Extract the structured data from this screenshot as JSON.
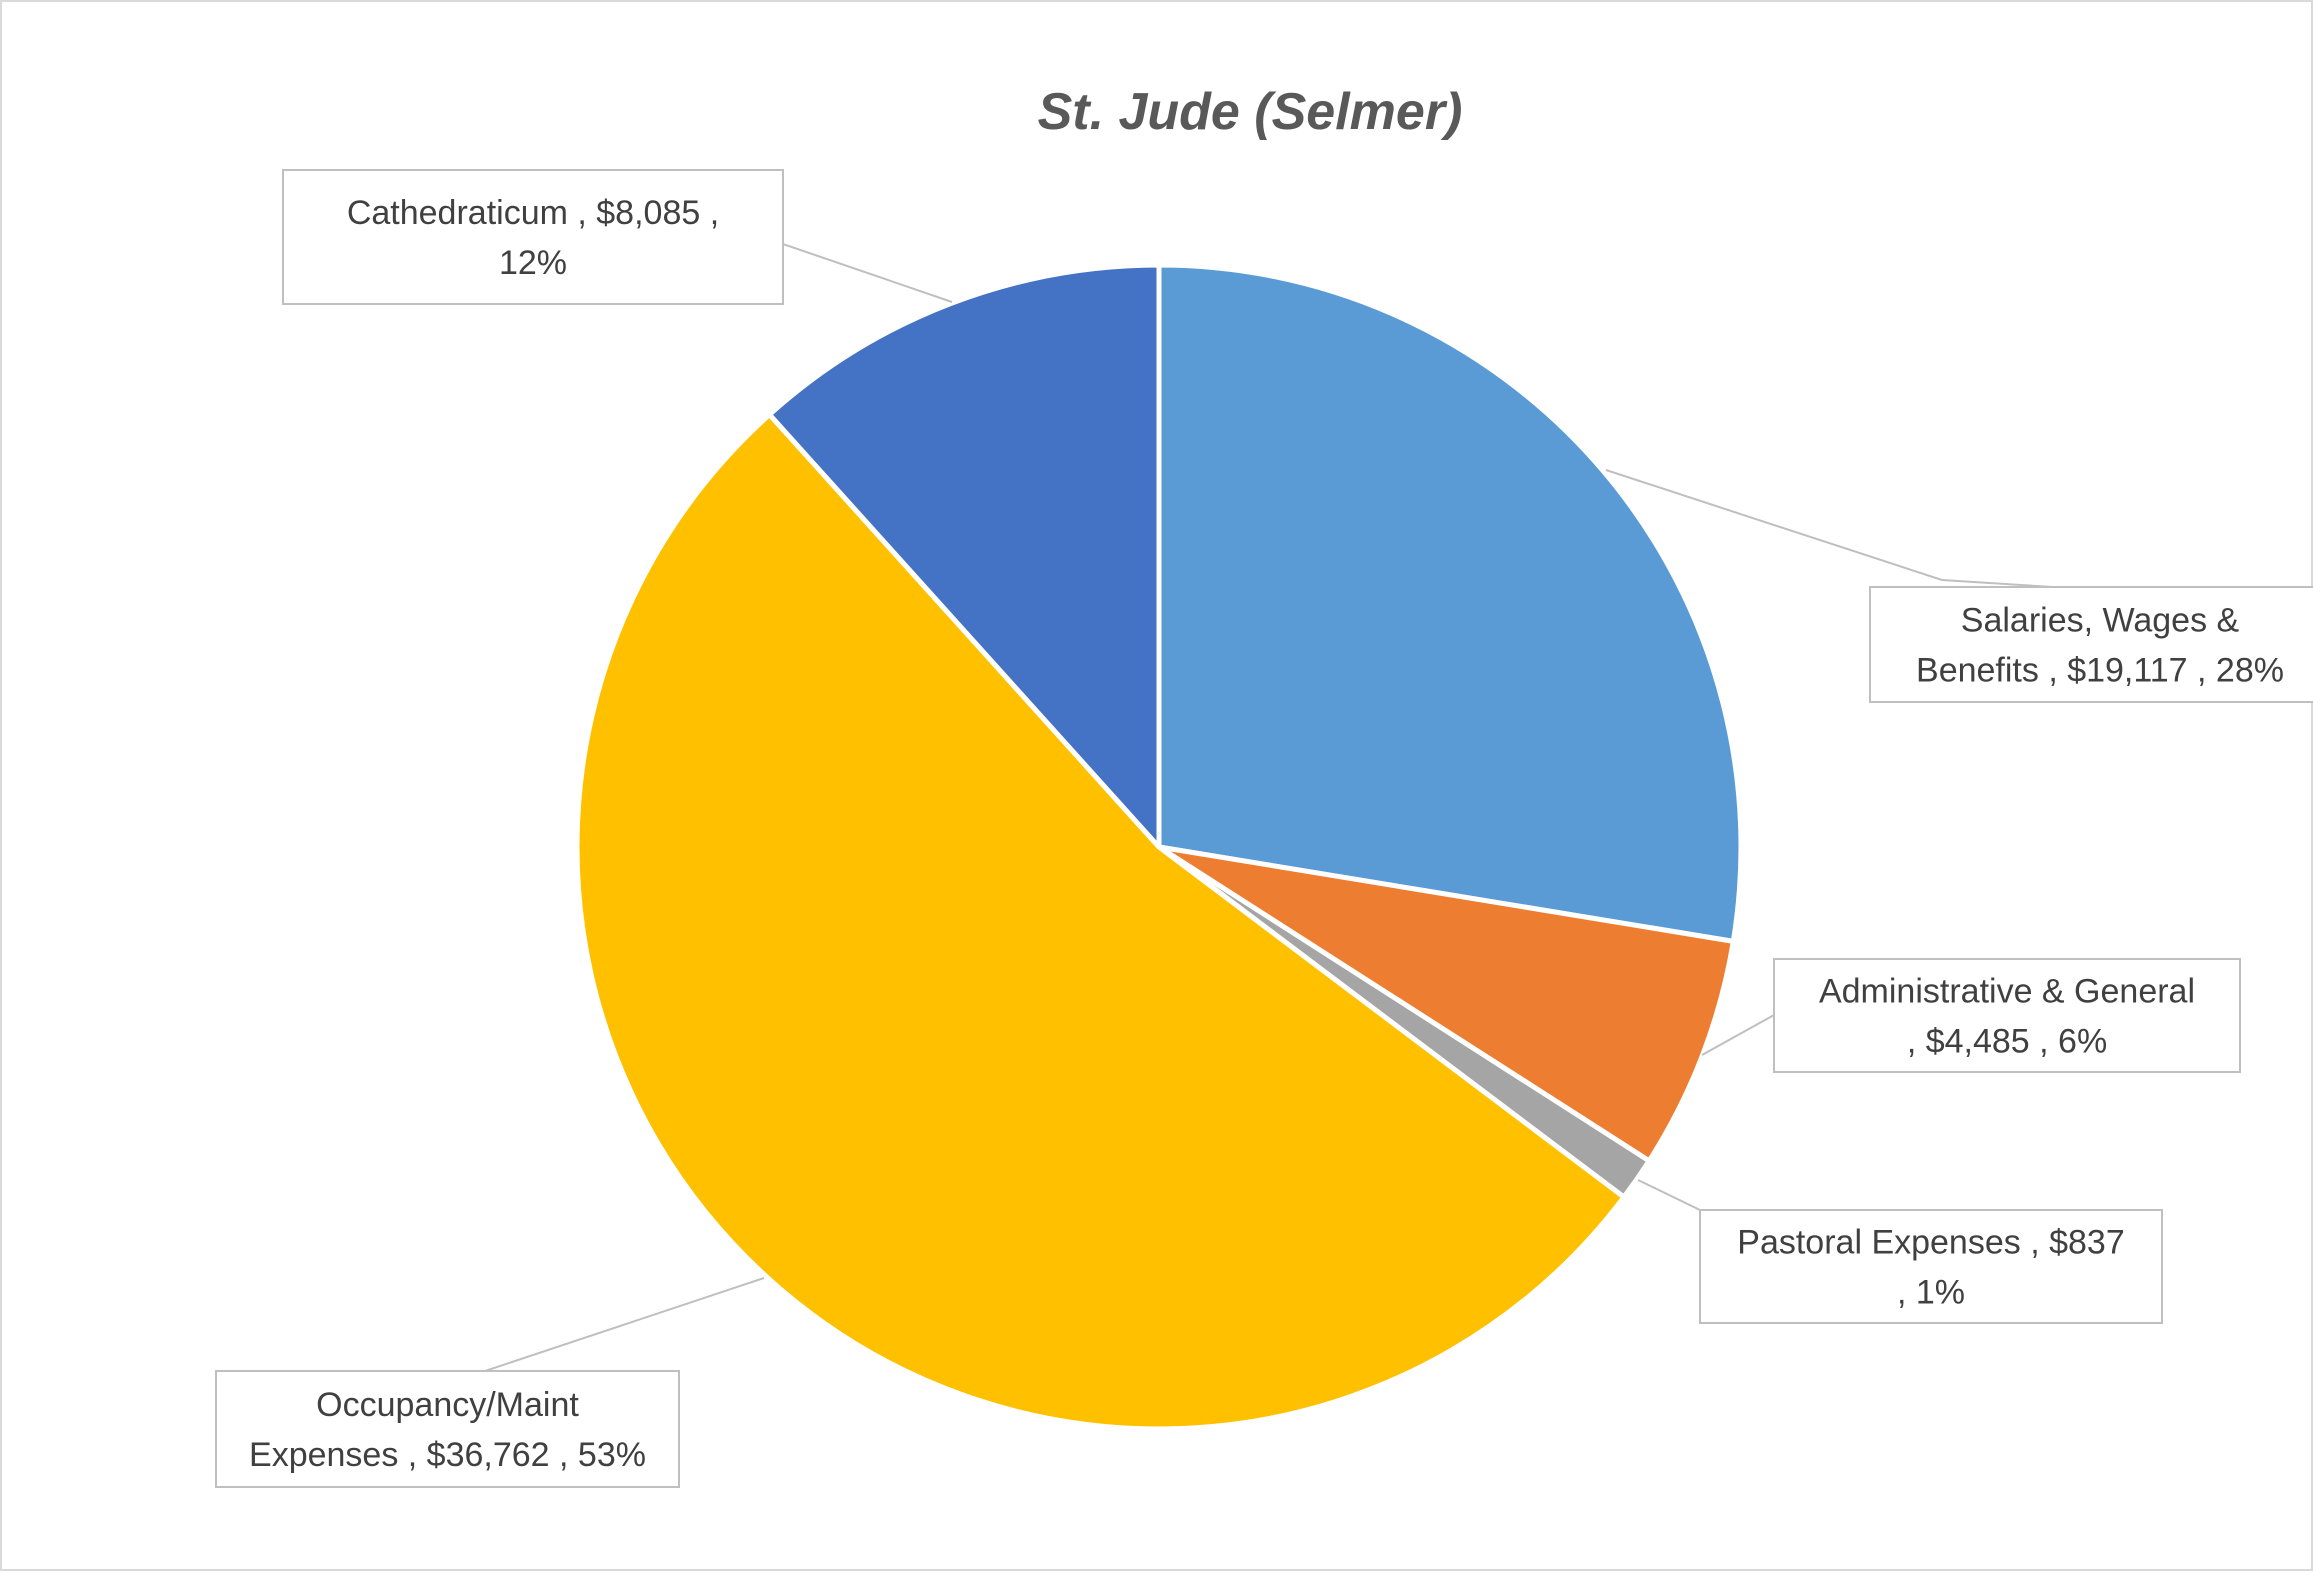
{
  "chart_data": {
    "type": "pie",
    "title": "St. Jude (Selmer)",
    "slices": [
      {
        "category": "Salaries, Wages & Benefits",
        "value": 19117,
        "percent": 28,
        "color": "#5b9bd5",
        "label_lines": [
          "Salaries, Wages &",
          "Benefits ,  $19,117 , 28%"
        ]
      },
      {
        "category": "Administrative & General",
        "value": 4485,
        "percent": 6,
        "color": "#ed7d31",
        "label_lines": [
          "Administrative & General",
          ",  $4,485 , 6%"
        ]
      },
      {
        "category": "Pastoral Expenses",
        "value": 837,
        "percent": 1,
        "color": "#a5a5a5",
        "label_lines": [
          "Pastoral Expenses ,  $837",
          ", 1%"
        ]
      },
      {
        "category": "Occupancy/Maint Expenses",
        "value": 36762,
        "percent": 53,
        "color": "#ffc000",
        "label_lines": [
          "Occupancy/Maint",
          "Expenses ,  $36,762 , 53%"
        ]
      },
      {
        "category": "Cathedraticum",
        "value": 8085,
        "percent": 12,
        "color": "#4472c4",
        "label_lines": [
          "Cathedraticum ,  $8,085 ,",
          "12%"
        ]
      }
    ],
    "legend": "none",
    "label_style": "callout boxes with category, value and percent"
  }
}
